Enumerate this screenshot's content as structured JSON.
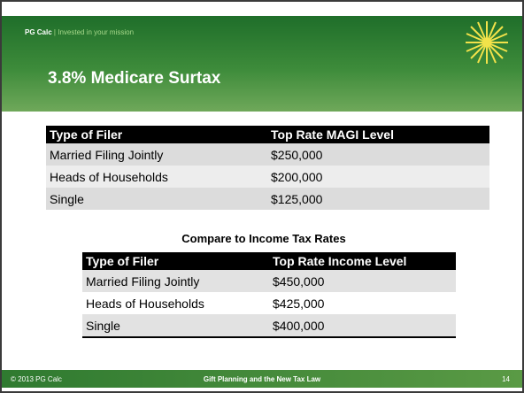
{
  "header": {
    "brand": "PG Calc",
    "separator": "|",
    "tagline": "Invested in your mission"
  },
  "title": "3.8% Medicare Surtax",
  "table1": {
    "columns": [
      "Type of Filer",
      "Top Rate MAGI Level"
    ],
    "rows": [
      [
        "Married Filing Jointly",
        "$250,000"
      ],
      [
        "Heads of Households",
        "$200,000"
      ],
      [
        "Single",
        "$125,000"
      ]
    ]
  },
  "subtitle": "Compare to Income Tax Rates",
  "table2": {
    "columns": [
      "Type of Filer",
      "Top Rate Income Level"
    ],
    "rows": [
      [
        "Married Filing Jointly",
        "$450,000"
      ],
      [
        "Heads of Households",
        "$425,000"
      ],
      [
        "Single",
        "$400,000"
      ]
    ]
  },
  "footer": {
    "copyright": "© 2013 PG Calc",
    "center": "Gift Planning and the New Tax Law",
    "page": "14"
  }
}
